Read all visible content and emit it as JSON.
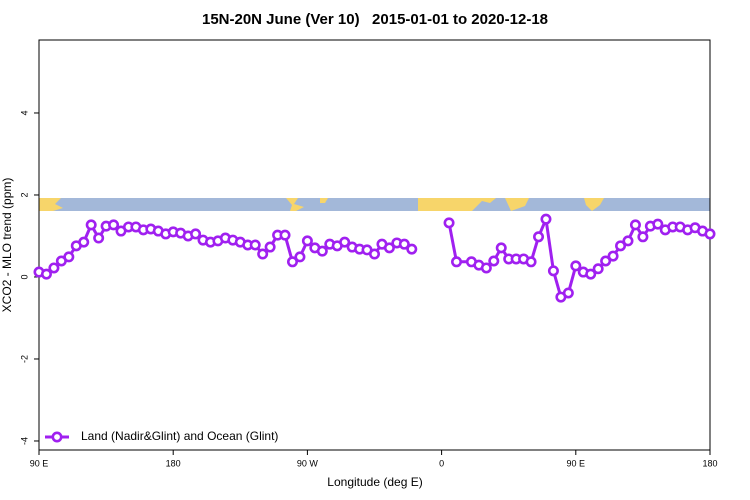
{
  "chart_data": {
    "type": "line",
    "title": "15N-20N June (Ver 10)   2015-01-01 to 2020-12-18",
    "xlabel": "Longitude (deg E)",
    "ylabel": "XCO2 - MLO trend (ppm)",
    "xlim": [
      90,
      540
    ],
    "ylim": [
      -4.22,
      5.78
    ],
    "xticks": [
      {
        "value": 90,
        "label": "90 E"
      },
      180,
      {
        "value": 270,
        "label": "90 W"
      },
      {
        "value": 360,
        "label": "0"
      },
      {
        "value": 450,
        "label": "90 E"
      },
      {
        "value": 540,
        "label": "180"
      }
    ],
    "yticks": [
      -4,
      -2,
      0,
      2,
      4
    ],
    "legend": "bottomleft",
    "x": [
      90,
      95,
      100,
      105,
      110,
      115,
      120,
      125,
      130,
      135,
      140,
      145,
      150,
      155,
      160,
      165,
      170,
      175,
      180,
      185,
      190,
      195,
      200,
      205,
      210,
      215,
      220,
      225,
      230,
      235,
      240,
      245,
      250,
      255,
      260,
      265,
      270,
      275,
      280,
      285,
      290,
      295,
      300,
      305,
      310,
      315,
      320,
      325,
      330,
      335,
      340,
      350,
      365,
      370,
      380,
      385,
      390,
      395,
      400,
      405,
      410,
      415,
      420,
      425,
      430,
      435,
      440,
      445,
      450,
      455,
      460,
      465,
      470,
      475,
      480,
      485,
      490,
      495,
      500,
      505,
      510,
      515,
      520,
      525,
      530,
      535,
      540
    ],
    "series": [
      {
        "name": "Land (Nadir&Glint) and Ocean (Glint)",
        "color": "#a020f0",
        "values": [
          0.12,
          0.07,
          0.22,
          0.39,
          0.49,
          0.76,
          0.85,
          1.27,
          0.95,
          1.24,
          1.27,
          1.12,
          1.22,
          1.22,
          1.15,
          1.17,
          1.12,
          1.05,
          1.1,
          1.07,
          1.0,
          1.05,
          0.9,
          0.85,
          0.88,
          0.95,
          0.9,
          0.85,
          0.78,
          0.78,
          0.56,
          0.73,
          1.02,
          1.02,
          0.37,
          0.49,
          0.88,
          0.71,
          0.63,
          0.8,
          0.76,
          0.85,
          0.73,
          0.68,
          0.66,
          0.56,
          0.8,
          0.71,
          0.83,
          0.8,
          0.68,
          null,
          1.32,
          0.37,
          0.37,
          0.29,
          0.22,
          0.39,
          0.71,
          0.44,
          0.44,
          0.44,
          0.37,
          0.98,
          1.41,
          0.15,
          -0.49,
          -0.39,
          0.27,
          0.12,
          0.07,
          0.2,
          0.39,
          0.51,
          0.76,
          0.88,
          1.27,
          0.98,
          1.24,
          1.29,
          1.15,
          1.22,
          1.22,
          1.15,
          1.2,
          1.12,
          1.05
        ]
      }
    ]
  }
}
